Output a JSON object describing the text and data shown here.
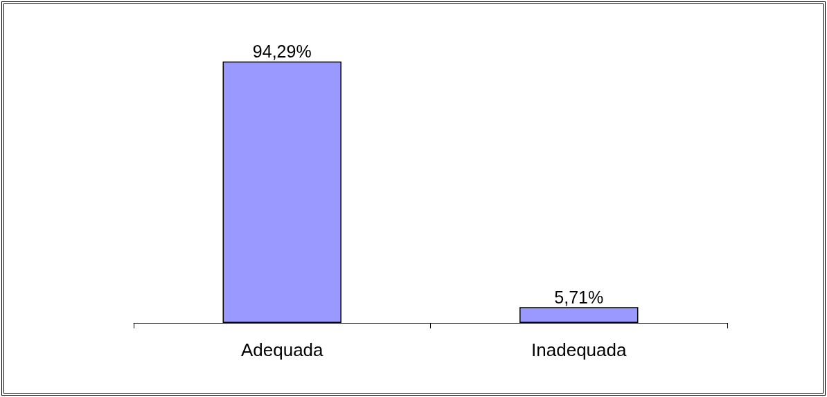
{
  "chart_data": {
    "type": "bar",
    "categories": [
      "Adequada",
      "Inadequada"
    ],
    "values": [
      94.29,
      5.71
    ],
    "color": "#9999ff",
    "value_labels": [
      "94,29%",
      "5,71%"
    ]
  }
}
